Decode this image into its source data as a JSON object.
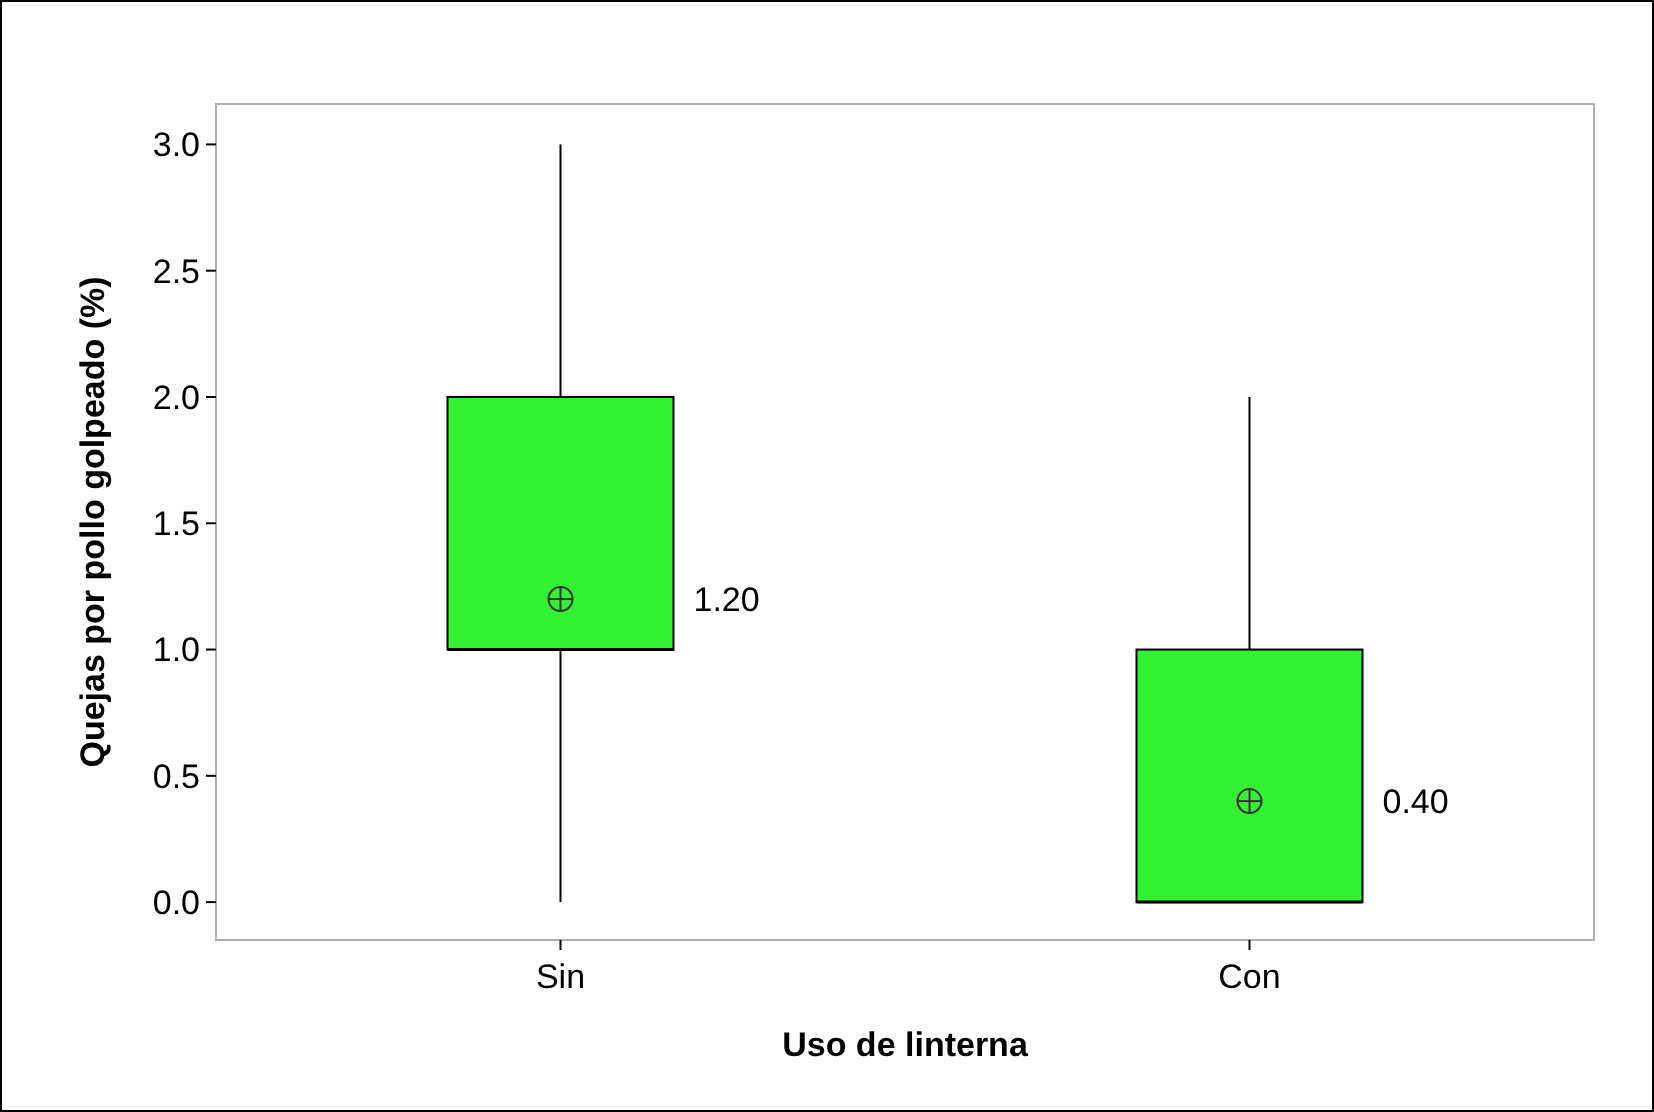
{
  "chart_data": {
    "type": "box",
    "categories": [
      "Sin",
      "Con"
    ],
    "boxes": [
      {
        "low": 0,
        "q1": 1,
        "median": 1,
        "q3": 2,
        "high": 3,
        "mean": 1.2
      },
      {
        "low": 0,
        "q1": 0,
        "median": 0,
        "q3": 1,
        "high": 2,
        "mean": 0.4
      }
    ],
    "color": "#33f033",
    "ylim": [
      -0.15,
      3.16
    ],
    "yticks": [
      {
        "value": 0,
        "label": "0.0"
      },
      {
        "value": 0.5,
        "label": "0.5"
      },
      {
        "value": 1,
        "label": "1.0"
      },
      {
        "value": 1.5,
        "label": "1.5"
      },
      {
        "value": 2,
        "label": "2.0"
      },
      {
        "value": 2.5,
        "label": "2.5"
      },
      {
        "value": 3,
        "label": "3.0"
      }
    ],
    "xlabel": "Uso de linterna",
    "ylabel": "Quejas por pollo golpeado (%)",
    "value_labels": [
      "1.20",
      "0.40"
    ]
  }
}
